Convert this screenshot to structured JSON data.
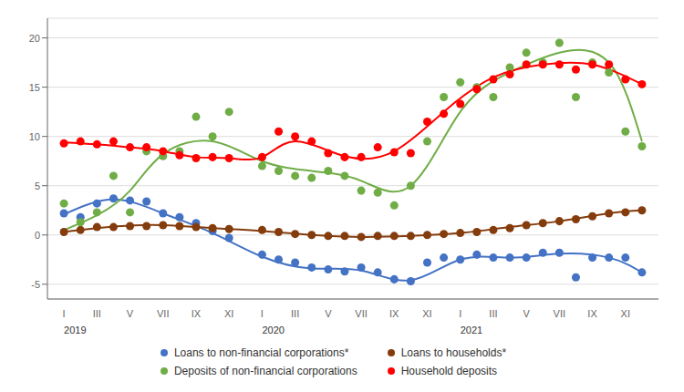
{
  "chart_data": {
    "type": "scatter",
    "title": "",
    "xlim": [
      0,
      37
    ],
    "ylim": [
      -6.5,
      22
    ],
    "yticks": [
      -5,
      0,
      5,
      10,
      15,
      20
    ],
    "xticks": [
      {
        "value": 1,
        "label": "I"
      },
      {
        "value": 3,
        "label": "III"
      },
      {
        "value": 5,
        "label": "V"
      },
      {
        "value": 7,
        "label": "VII"
      },
      {
        "value": 9,
        "label": "IX"
      },
      {
        "value": 11,
        "label": "XI"
      },
      {
        "value": 13,
        "label": "I"
      },
      {
        "value": 15,
        "label": "III"
      },
      {
        "value": 17,
        "label": "V"
      },
      {
        "value": 19,
        "label": "VII"
      },
      {
        "value": 21,
        "label": "IX"
      },
      {
        "value": 23,
        "label": "XI"
      },
      {
        "value": 25,
        "label": "I"
      },
      {
        "value": 27,
        "label": "III"
      },
      {
        "value": 29,
        "label": "V"
      },
      {
        "value": 31,
        "label": "VII"
      },
      {
        "value": 33,
        "label": "IX"
      },
      {
        "value": 35,
        "label": "XI"
      }
    ],
    "annotations": [
      {
        "x": 1,
        "text": "2019"
      },
      {
        "x": 13,
        "text": "2020"
      },
      {
        "x": 25,
        "text": "2021"
      }
    ],
    "grid": true,
    "legend": "bottom",
    "series": [
      {
        "name": "Loans to non-financial corporations*",
        "color": "#4472C4",
        "x": [
          1,
          2,
          3,
          4,
          5,
          6,
          7,
          8,
          9,
          10,
          11,
          13,
          14,
          15,
          16,
          17,
          18,
          19,
          20,
          21,
          22,
          23,
          24,
          25,
          26,
          27,
          28,
          29,
          30,
          31,
          32,
          33,
          34,
          35,
          36
        ],
        "values": [
          2.2,
          1.8,
          3.2,
          3.7,
          3.5,
          3.4,
          2.2,
          1.8,
          1.2,
          0.4,
          -0.3,
          -2.0,
          -2.5,
          -2.8,
          -3.3,
          -3.5,
          -3.7,
          -3.3,
          -3.8,
          -4.5,
          -4.7,
          -2.8,
          -2.3,
          -2.5,
          -2.0,
          -2.3,
          -2.3,
          -2.3,
          -1.8,
          -1.8,
          -4.3,
          -2.3,
          -2.3,
          -2.3,
          -3.8
        ],
        "curve_x": [
          1,
          4,
          7,
          10,
          13,
          16,
          19,
          22,
          25,
          28,
          31,
          34,
          36
        ],
        "curve_y": [
          2.1,
          3.6,
          2.2,
          0.2,
          -2.2,
          -3.4,
          -3.6,
          -4.6,
          -2.5,
          -2.3,
          -1.9,
          -2.3,
          -3.8
        ]
      },
      {
        "name": "Loans to households*",
        "color": "#843C0C",
        "x": [
          1,
          2,
          3,
          4,
          5,
          6,
          7,
          8,
          9,
          10,
          11,
          13,
          14,
          15,
          16,
          17,
          18,
          19,
          20,
          21,
          22,
          23,
          24,
          25,
          26,
          27,
          28,
          29,
          30,
          31,
          32,
          33,
          34,
          35,
          36
        ],
        "values": [
          0.3,
          0.5,
          0.8,
          0.8,
          0.9,
          0.9,
          1.0,
          0.9,
          0.8,
          0.7,
          0.6,
          0.5,
          0.3,
          0.1,
          0.0,
          -0.1,
          -0.1,
          -0.2,
          -0.1,
          -0.1,
          -0.1,
          0.0,
          0.1,
          0.2,
          0.3,
          0.5,
          0.7,
          1.0,
          1.2,
          1.4,
          1.6,
          1.9,
          2.2,
          2.3,
          2.5
        ],
        "curve_x": [
          1,
          4,
          7,
          10,
          13,
          16,
          19,
          22,
          25,
          28,
          31,
          34,
          36
        ],
        "curve_y": [
          0.3,
          0.85,
          1.0,
          0.7,
          0.4,
          0.0,
          -0.2,
          -0.1,
          0.2,
          0.8,
          1.4,
          2.2,
          2.5
        ]
      },
      {
        "name": "Deposits of non-financial corporations",
        "color": "#70AD47",
        "x": [
          1,
          2,
          3,
          4,
          5,
          6,
          7,
          8,
          9,
          10,
          11,
          13,
          14,
          15,
          16,
          17,
          18,
          19,
          20,
          21,
          22,
          23,
          24,
          25,
          26,
          27,
          28,
          29,
          30,
          31,
          32,
          33,
          34,
          35,
          36
        ],
        "values": [
          3.2,
          1.3,
          2.3,
          6.0,
          2.3,
          8.5,
          8.0,
          8.5,
          12.0,
          10.0,
          12.5,
          7.0,
          6.5,
          6.0,
          5.8,
          6.5,
          6.0,
          4.5,
          4.3,
          3.0,
          5.0,
          9.5,
          14.0,
          15.5,
          15.0,
          14.0,
          17.0,
          18.5,
          17.5,
          19.5,
          14.0,
          17.5,
          16.5,
          10.5,
          9.0
        ],
        "curve_x": [
          1,
          3,
          5,
          7,
          10,
          13,
          16,
          19,
          22,
          25,
          28,
          31,
          34,
          36
        ],
        "curve_y": [
          0.5,
          2.0,
          4.5,
          8.2,
          9.5,
          7.5,
          6.5,
          5.5,
          5.0,
          12.5,
          16.5,
          18.5,
          17.5,
          9.5
        ]
      },
      {
        "name": "Household deposits",
        "color": "#FF0000",
        "x": [
          1,
          2,
          3,
          4,
          5,
          6,
          7,
          8,
          9,
          10,
          11,
          13,
          14,
          15,
          16,
          17,
          18,
          19,
          20,
          21,
          22,
          23,
          24,
          25,
          26,
          27,
          28,
          29,
          30,
          31,
          32,
          33,
          34,
          35,
          36
        ],
        "values": [
          9.3,
          9.5,
          9.2,
          9.5,
          8.9,
          8.9,
          8.5,
          8.1,
          7.8,
          7.9,
          7.8,
          7.9,
          10.5,
          10.0,
          9.5,
          8.3,
          7.9,
          7.9,
          8.9,
          8.4,
          8.3,
          11.5,
          12.3,
          13.3,
          14.8,
          15.8,
          16.3,
          17.3,
          17.3,
          17.3,
          16.8,
          17.3,
          17.3,
          15.8,
          15.3
        ],
        "curve_x": [
          1,
          3,
          5,
          7,
          9,
          11,
          13,
          15,
          18,
          21,
          24,
          27,
          30,
          33,
          36
        ],
        "curve_y": [
          9.4,
          9.2,
          8.9,
          8.5,
          7.9,
          7.8,
          7.9,
          9.5,
          8.0,
          8.5,
          12.5,
          16.0,
          17.3,
          17.3,
          15.3
        ]
      }
    ]
  }
}
